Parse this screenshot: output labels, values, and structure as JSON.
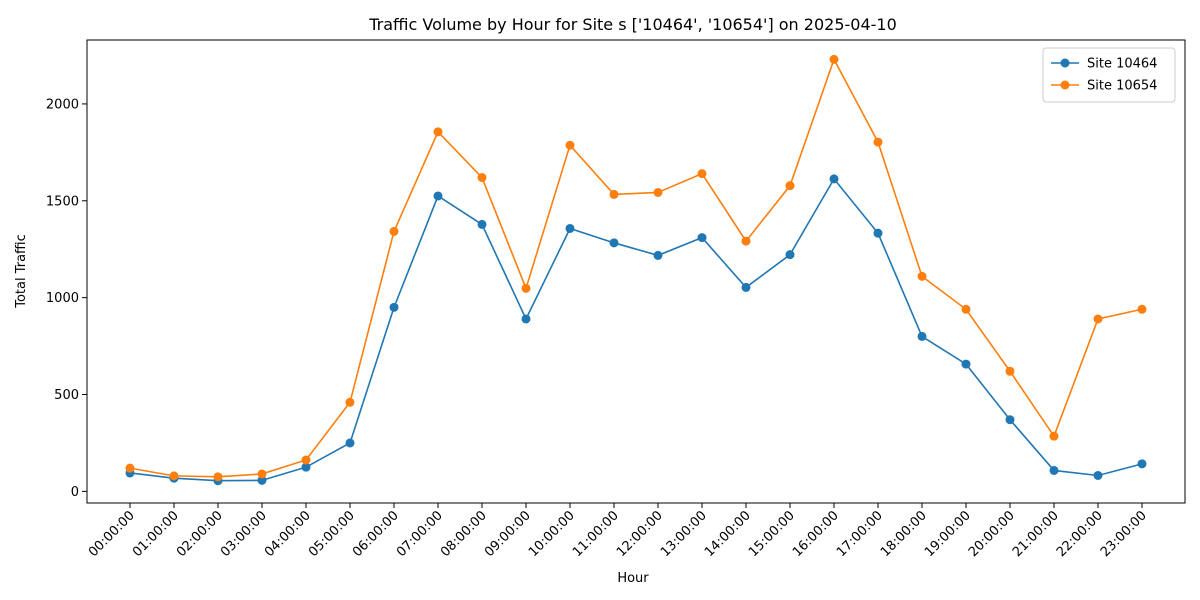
{
  "chart_data": {
    "type": "line",
    "title": "Traffic Volume by Hour for Site s ['10464', '10654'] on 2025-04-10",
    "xlabel": "Hour",
    "ylabel": "Total Traffic",
    "categories": [
      "00:00:00",
      "01:00:00",
      "02:00:00",
      "03:00:00",
      "04:00:00",
      "05:00:00",
      "06:00:00",
      "07:00:00",
      "08:00:00",
      "09:00:00",
      "10:00:00",
      "11:00:00",
      "12:00:00",
      "13:00:00",
      "14:00:00",
      "15:00:00",
      "16:00:00",
      "17:00:00",
      "18:00:00",
      "19:00:00",
      "20:00:00",
      "21:00:00",
      "22:00:00",
      "23:00:00"
    ],
    "ylim": [
      -60,
      2330
    ],
    "yticks": [
      0,
      500,
      1000,
      1500,
      2000
    ],
    "grid": false,
    "legend_position": "top-right",
    "series": [
      {
        "name": "Site 10464",
        "color": "#1f77b4",
        "values": [
          95,
          68,
          55,
          57,
          125,
          250,
          950,
          1525,
          1378,
          890,
          1357,
          1283,
          1218,
          1310,
          1053,
          1222,
          1613,
          1333,
          800,
          657,
          370,
          108,
          82,
          142
        ]
      },
      {
        "name": "Site 10654",
        "color": "#ff7f0e",
        "values": [
          120,
          80,
          75,
          90,
          162,
          460,
          1342,
          1856,
          1620,
          1048,
          1787,
          1533,
          1543,
          1640,
          1292,
          1578,
          2230,
          1803,
          1110,
          940,
          620,
          285,
          890,
          940
        ]
      }
    ]
  }
}
